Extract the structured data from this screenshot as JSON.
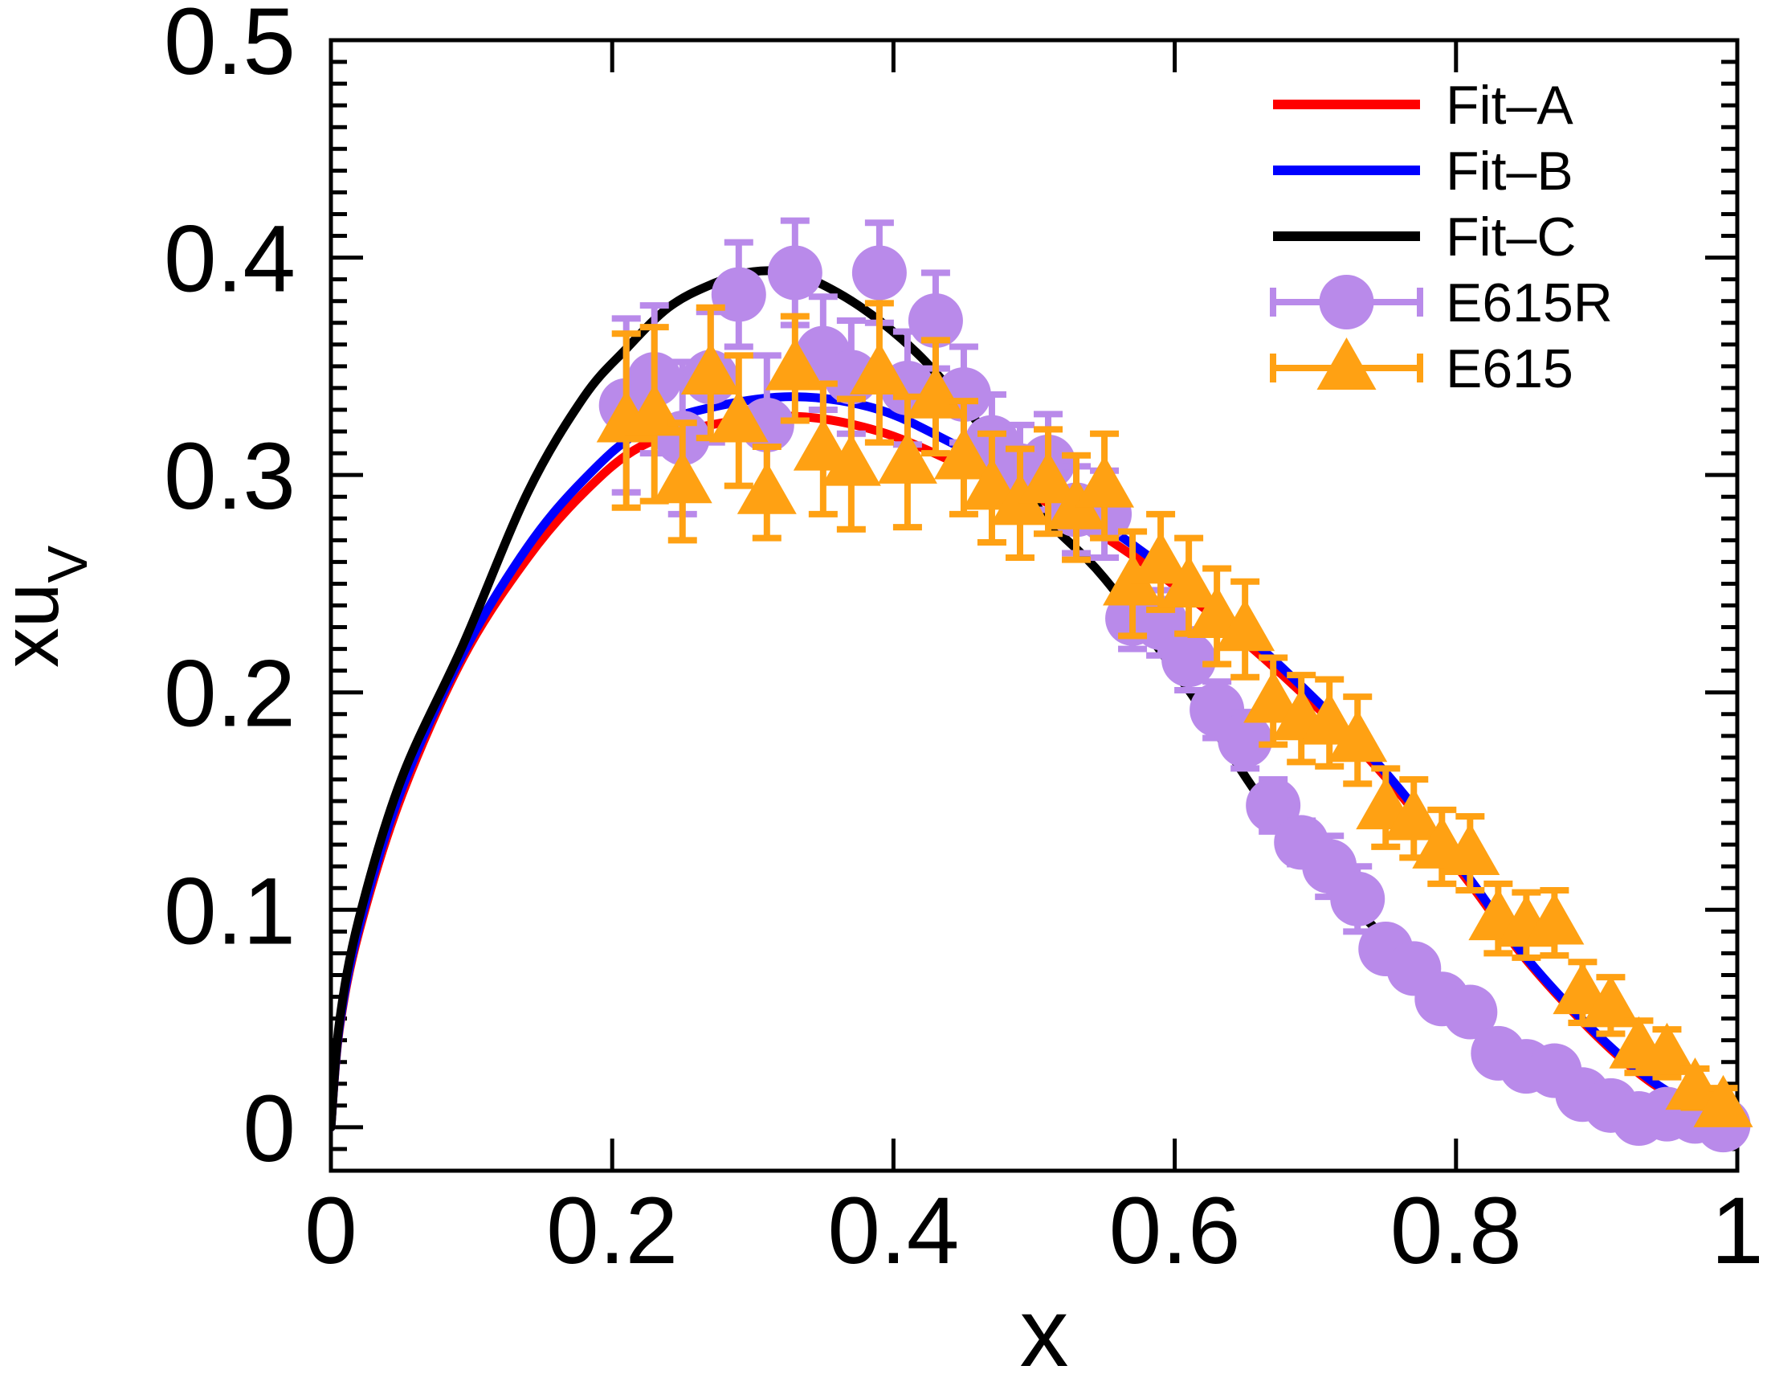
{
  "figure": {
    "background": "#ffffff",
    "frame_color": "#000000"
  },
  "chart_data": {
    "type": "line+scatter",
    "title": "",
    "xlabel": "x",
    "ylabel": {
      "main": "xu",
      "sub": "V"
    },
    "xlim": [
      0,
      1
    ],
    "ylim": [
      -0.02,
      0.5
    ],
    "grid": "off",
    "x_ticks": {
      "values": [
        0,
        0.2,
        0.4,
        0.6,
        0.8,
        1
      ],
      "labels": [
        "0",
        "0.2",
        "0.4",
        "0.6",
        "0.8",
        "1"
      ]
    },
    "y_ticks": {
      "values": [
        0,
        0.1,
        0.2,
        0.3,
        0.4,
        0.5
      ],
      "labels": [
        "0",
        "0.1",
        "0.2",
        "0.3",
        "0.4",
        "0.5"
      ],
      "minor_step": 0.01
    },
    "legend": {
      "position": "top-right",
      "entries": [
        "Fit–A",
        "Fit–B",
        "Fit–C",
        "E615R",
        "E615"
      ]
    },
    "series": [
      {
        "name": "Fit–A",
        "type": "line",
        "color": "#ff0000",
        "points": [
          [
            0,
            0
          ],
          [
            0.006,
            0.045
          ],
          [
            0.02,
            0.09
          ],
          [
            0.05,
            0.152
          ],
          [
            0.094,
            0.216
          ],
          [
            0.14,
            0.262
          ],
          [
            0.18,
            0.292
          ],
          [
            0.22,
            0.313
          ],
          [
            0.27,
            0.323
          ],
          [
            0.33,
            0.327
          ],
          [
            0.39,
            0.32
          ],
          [
            0.45,
            0.304
          ],
          [
            0.51,
            0.287
          ],
          [
            0.57,
            0.263
          ],
          [
            0.63,
            0.234
          ],
          [
            0.69,
            0.2
          ],
          [
            0.75,
            0.161
          ],
          [
            0.81,
            0.112
          ],
          [
            0.85,
            0.077
          ],
          [
            0.9,
            0.042
          ],
          [
            0.94,
            0.02
          ],
          [
            0.98,
            0.006
          ],
          [
            1.0,
            0.002
          ]
        ]
      },
      {
        "name": "Fit–B",
        "type": "line",
        "color": "#0000ff",
        "points": [
          [
            0,
            0
          ],
          [
            0.006,
            0.046
          ],
          [
            0.02,
            0.092
          ],
          [
            0.05,
            0.155
          ],
          [
            0.094,
            0.218
          ],
          [
            0.14,
            0.267
          ],
          [
            0.18,
            0.298
          ],
          [
            0.22,
            0.32
          ],
          [
            0.27,
            0.331
          ],
          [
            0.33,
            0.336
          ],
          [
            0.39,
            0.33
          ],
          [
            0.45,
            0.312
          ],
          [
            0.51,
            0.293
          ],
          [
            0.57,
            0.268
          ],
          [
            0.63,
            0.238
          ],
          [
            0.69,
            0.203
          ],
          [
            0.75,
            0.163
          ],
          [
            0.81,
            0.114
          ],
          [
            0.85,
            0.078
          ],
          [
            0.9,
            0.043
          ],
          [
            0.94,
            0.021
          ],
          [
            0.98,
            0.006
          ],
          [
            1.0,
            0.002
          ]
        ]
      },
      {
        "name": "Fit–C",
        "type": "line",
        "color": "#000000",
        "points": [
          [
            0,
            0
          ],
          [
            0.006,
            0.048
          ],
          [
            0.02,
            0.096
          ],
          [
            0.05,
            0.16
          ],
          [
            0.094,
            0.222
          ],
          [
            0.14,
            0.292
          ],
          [
            0.18,
            0.336
          ],
          [
            0.21,
            0.358
          ],
          [
            0.24,
            0.377
          ],
          [
            0.27,
            0.3875
          ],
          [
            0.3,
            0.3935
          ],
          [
            0.33,
            0.3925
          ],
          [
            0.36,
            0.384
          ],
          [
            0.39,
            0.371
          ],
          [
            0.42,
            0.354
          ],
          [
            0.45,
            0.332
          ],
          [
            0.48,
            0.307
          ],
          [
            0.51,
            0.279
          ],
          [
            0.55,
            0.2525
          ],
          [
            0.61,
            0.201
          ],
          [
            0.67,
            0.143
          ],
          [
            0.73,
            0.1
          ],
          [
            0.79,
            0.06
          ],
          [
            0.85,
            0.026
          ],
          [
            0.91,
            0.0065
          ],
          [
            0.96,
            0.002
          ],
          [
            1.0,
            0.001
          ]
        ]
      },
      {
        "name": "E615R",
        "type": "scatter",
        "marker": "circle",
        "color": "#b98aea",
        "x": [
          0.21,
          0.23,
          0.25,
          0.27,
          0.29,
          0.31,
          0.33,
          0.35,
          0.37,
          0.39,
          0.41,
          0.43,
          0.45,
          0.47,
          0.49,
          0.51,
          0.53,
          0.55,
          0.57,
          0.59,
          0.61,
          0.63,
          0.65,
          0.67,
          0.69,
          0.71,
          0.73,
          0.75,
          0.77,
          0.79,
          0.81,
          0.83,
          0.85,
          0.87,
          0.89,
          0.91,
          0.93,
          0.95,
          0.97,
          0.99
        ],
        "y": [
          0.332,
          0.344,
          0.317,
          0.345,
          0.383,
          0.323,
          0.393,
          0.356,
          0.345,
          0.393,
          0.34,
          0.371,
          0.337,
          0.315,
          0.302,
          0.306,
          0.284,
          0.282,
          0.234,
          0.232,
          0.215,
          0.192,
          0.178,
          0.148,
          0.131,
          0.12,
          0.105,
          0.082,
          0.073,
          0.059,
          0.053,
          0.034,
          0.028,
          0.026,
          0.015,
          0.01,
          0.004,
          0.006,
          0.005,
          0.001
        ],
        "yerr": [
          0.04,
          0.034,
          0.035,
          0.03,
          0.024,
          0.032,
          0.024,
          0.026,
          0.026,
          0.023,
          0.026,
          0.022,
          0.022,
          0.022,
          0.021,
          0.022,
          0.02,
          0.02,
          0.014,
          0.015,
          0.014,
          0.013,
          0.013,
          0.012,
          0.01,
          0.014,
          0.015,
          0,
          0,
          0,
          0,
          0,
          0,
          0,
          0,
          0,
          0,
          0,
          0,
          0
        ]
      },
      {
        "name": "E615",
        "type": "scatter",
        "marker": "triangle",
        "color": "#ffa113",
        "x": [
          0.21,
          0.23,
          0.25,
          0.27,
          0.29,
          0.31,
          0.33,
          0.35,
          0.37,
          0.39,
          0.41,
          0.43,
          0.45,
          0.47,
          0.49,
          0.51,
          0.53,
          0.55,
          0.57,
          0.59,
          0.61,
          0.63,
          0.65,
          0.67,
          0.69,
          0.71,
          0.73,
          0.75,
          0.77,
          0.79,
          0.81,
          0.83,
          0.85,
          0.87,
          0.89,
          0.91,
          0.93,
          0.95,
          0.97,
          0.99
        ],
        "y": [
          0.325,
          0.328,
          0.297,
          0.347,
          0.325,
          0.292,
          0.349,
          0.312,
          0.305,
          0.347,
          0.306,
          0.336,
          0.308,
          0.294,
          0.287,
          0.297,
          0.285,
          0.295,
          0.25,
          0.26,
          0.249,
          0.235,
          0.229,
          0.196,
          0.188,
          0.186,
          0.178,
          0.147,
          0.142,
          0.129,
          0.126,
          0.096,
          0.093,
          0.094,
          0.062,
          0.056,
          0.037,
          0.034,
          0.018,
          0.01
        ],
        "yerr": [
          0.04,
          0.04,
          0.027,
          0.03,
          0.03,
          0.021,
          0.024,
          0.03,
          0.03,
          0.032,
          0.03,
          0.026,
          0.026,
          0.025,
          0.025,
          0.024,
          0.024,
          0.024,
          0.024,
          0.022,
          0.022,
          0.022,
          0.022,
          0.02,
          0.02,
          0.02,
          0.02,
          0.018,
          0.018,
          0.017,
          0.017,
          0.016,
          0.015,
          0.015,
          0.014,
          0.013,
          0.012,
          0.011,
          0.009,
          0.008
        ]
      }
    ]
  }
}
